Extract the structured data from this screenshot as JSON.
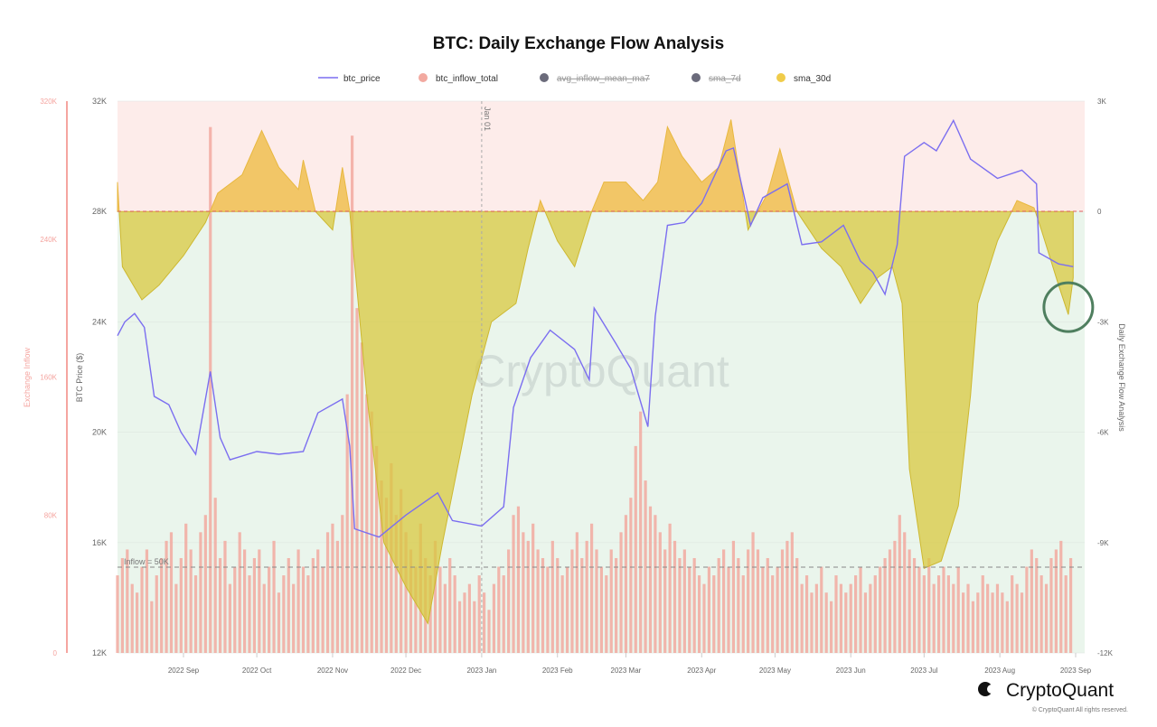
{
  "chart_data": {
    "type": "line",
    "title": "BTC: Daily Exchange Flow Analysis",
    "legend": {
      "placement": "top-center",
      "items": [
        {
          "name": "btc_price",
          "color": "#7b6ef0",
          "marker": "line",
          "hidden": false
        },
        {
          "name": "btc_inflow_total",
          "color": "#f2a9a0",
          "marker": "dot",
          "hidden": false
        },
        {
          "name": "avg_inflow_mean_ma7",
          "color": "#6b6b7b",
          "marker": "dot",
          "hidden": true
        },
        {
          "name": "sma_7d",
          "color": "#6b6b7b",
          "marker": "dot",
          "hidden": true
        },
        {
          "name": "sma_30d",
          "color": "#f0cc4a",
          "marker": "dot",
          "hidden": false
        }
      ]
    },
    "axes": {
      "inflow": {
        "label": "Exchange Inflow",
        "ticks": [
          "320K",
          "240K",
          "160K",
          "80K",
          "0"
        ],
        "range": [
          0,
          320000
        ],
        "color": "#f5a5a0"
      },
      "price": {
        "label": "BTC Price ($)",
        "ticks": [
          "32K",
          "28K",
          "24K",
          "20K",
          "16K",
          "12K"
        ],
        "range": [
          12000,
          32000
        ]
      },
      "flow": {
        "label": "Daily Exchange Flow Analysis",
        "ticks": [
          "3K",
          "0",
          "-3K",
          "-6K",
          "-9K",
          "-12K"
        ],
        "range": [
          -12000,
          3000
        ]
      },
      "x": {
        "ticks": [
          "2022 Sep",
          "2022 Oct",
          "2022 Nov",
          "2022 Dec",
          "2023 Jan",
          "2023 Feb",
          "2023 Mar",
          "2023 Apr",
          "2023 May",
          "2023 Jun",
          "2023 Jul",
          "2023 Aug",
          "2023 Sep"
        ],
        "tick_dates": [
          "2022-09-01",
          "2022-10-01",
          "2022-11-01",
          "2022-12-01",
          "2023-01-01",
          "2023-02-01",
          "2023-03-01",
          "2023-04-01",
          "2023-05-01",
          "2023-06-01",
          "2023-07-01",
          "2023-08-01",
          "2023-09-01"
        ]
      }
    },
    "grid": true,
    "annotations": {
      "jan_marker": {
        "label": "Jan 01",
        "date": "2023-01-01"
      },
      "inflow_threshold": {
        "label": "Inflow = 50K",
        "value": 50000
      },
      "zero_line": {
        "value": 0,
        "color": "#e06060"
      },
      "highlight_circle": {
        "date": "2023-08-29",
        "value": -2600,
        "color": "#4f7f5f"
      }
    },
    "zones": {
      "positive_color": "#fdecea",
      "negative_color": "#eaf5ec"
    },
    "watermark": "CryptoQuant",
    "btc_inflow_total": {
      "start": "2022-08-05",
      "step_days": 2,
      "unit": "K",
      "values": [
        45,
        55,
        60,
        40,
        35,
        50,
        60,
        30,
        45,
        55,
        65,
        70,
        40,
        55,
        75,
        60,
        45,
        70,
        80,
        305,
        90,
        55,
        65,
        40,
        50,
        70,
        60,
        45,
        55,
        60,
        40,
        50,
        65,
        35,
        45,
        55,
        40,
        60,
        50,
        45,
        55,
        60,
        50,
        70,
        75,
        65,
        80,
        150,
        300,
        200,
        180,
        150,
        140,
        120,
        100,
        90,
        110,
        80,
        95,
        70,
        60,
        50,
        75,
        55,
        45,
        65,
        50,
        40,
        55,
        45,
        30,
        35,
        40,
        30,
        45,
        35,
        25,
        40,
        50,
        45,
        60,
        80,
        85,
        70,
        65,
        75,
        60,
        55,
        50,
        65,
        55,
        45,
        50,
        60,
        70,
        55,
        65,
        75,
        60,
        50,
        45,
        60,
        55,
        70,
        80,
        90,
        120,
        140,
        100,
        85,
        80,
        70,
        60,
        75,
        65,
        55,
        60,
        50,
        55,
        45,
        40,
        50,
        45,
        55,
        60,
        50,
        65,
        55,
        45,
        60,
        70,
        60,
        50,
        55,
        45,
        50,
        60,
        65,
        70,
        55,
        40,
        45,
        35,
        40,
        50,
        35,
        30,
        45,
        40,
        35,
        40,
        45,
        50,
        35,
        40,
        45,
        50,
        55,
        60,
        65,
        80,
        70,
        60,
        55,
        50,
        45,
        55,
        40,
        45,
        50,
        45,
        40,
        50,
        35,
        40,
        30,
        35,
        45,
        40,
        35,
        40,
        35,
        30,
        45,
        40,
        35,
        50,
        60,
        55,
        45,
        40,
        55,
        60,
        65,
        45,
        55
      ]
    },
    "btc_price": [
      [
        "2022-08-05",
        23500
      ],
      [
        "2022-08-08",
        24000
      ],
      [
        "2022-08-12",
        24300
      ],
      [
        "2022-08-16",
        23800
      ],
      [
        "2022-08-20",
        21300
      ],
      [
        "2022-08-26",
        21000
      ],
      [
        "2022-08-31",
        20000
      ],
      [
        "2022-09-06",
        19200
      ],
      [
        "2022-09-12",
        22200
      ],
      [
        "2022-09-16",
        19800
      ],
      [
        "2022-09-20",
        19000
      ],
      [
        "2022-10-01",
        19300
      ],
      [
        "2022-10-10",
        19200
      ],
      [
        "2022-10-20",
        19300
      ],
      [
        "2022-10-26",
        20700
      ],
      [
        "2022-11-05",
        21200
      ],
      [
        "2022-11-08",
        19500
      ],
      [
        "2022-11-10",
        16500
      ],
      [
        "2022-11-20",
        16200
      ],
      [
        "2022-12-01",
        17000
      ],
      [
        "2022-12-14",
        17800
      ],
      [
        "2022-12-20",
        16800
      ],
      [
        "2023-01-01",
        16600
      ],
      [
        "2023-01-10",
        17300
      ],
      [
        "2023-01-14",
        20900
      ],
      [
        "2023-01-21",
        22700
      ],
      [
        "2023-01-29",
        23700
      ],
      [
        "2023-02-08",
        23000
      ],
      [
        "2023-02-14",
        21900
      ],
      [
        "2023-02-16",
        24500
      ],
      [
        "2023-02-25",
        23200
      ],
      [
        "2023-03-03",
        22300
      ],
      [
        "2023-03-10",
        20200
      ],
      [
        "2023-03-13",
        24200
      ],
      [
        "2023-03-18",
        27500
      ],
      [
        "2023-03-25",
        27600
      ],
      [
        "2023-04-01",
        28300
      ],
      [
        "2023-04-11",
        30200
      ],
      [
        "2023-04-14",
        30300
      ],
      [
        "2023-04-21",
        27500
      ],
      [
        "2023-04-26",
        28500
      ],
      [
        "2023-05-06",
        29000
      ],
      [
        "2023-05-12",
        26800
      ],
      [
        "2023-05-20",
        26900
      ],
      [
        "2023-05-29",
        27500
      ],
      [
        "2023-06-05",
        26200
      ],
      [
        "2023-06-10",
        25800
      ],
      [
        "2023-06-15",
        25000
      ],
      [
        "2023-06-20",
        26800
      ],
      [
        "2023-06-23",
        30000
      ],
      [
        "2023-07-01",
        30500
      ],
      [
        "2023-07-06",
        30200
      ],
      [
        "2023-07-13",
        31300
      ],
      [
        "2023-07-20",
        29900
      ],
      [
        "2023-07-31",
        29200
      ],
      [
        "2023-08-10",
        29500
      ],
      [
        "2023-08-16",
        29000
      ],
      [
        "2023-08-17",
        26500
      ],
      [
        "2023-08-25",
        26100
      ],
      [
        "2023-08-31",
        26000
      ]
    ],
    "sma_30d": [
      [
        "2022-08-05",
        800
      ],
      [
        "2022-08-07",
        -1500
      ],
      [
        "2022-08-15",
        -2400
      ],
      [
        "2022-08-22",
        -2000
      ],
      [
        "2022-09-01",
        -1200
      ],
      [
        "2022-09-10",
        -300
      ],
      [
        "2022-09-15",
        500
      ],
      [
        "2022-09-25",
        1000
      ],
      [
        "2022-10-03",
        2200
      ],
      [
        "2022-10-10",
        1200
      ],
      [
        "2022-10-18",
        600
      ],
      [
        "2022-10-20",
        1400
      ],
      [
        "2022-10-25",
        0
      ],
      [
        "2022-11-01",
        -500
      ],
      [
        "2022-11-05",
        1200
      ],
      [
        "2022-11-08",
        0
      ],
      [
        "2022-11-15",
        -5000
      ],
      [
        "2022-11-22",
        -9000
      ],
      [
        "2022-12-01",
        -10200
      ],
      [
        "2022-12-10",
        -11200
      ],
      [
        "2022-12-16",
        -9000
      ],
      [
        "2022-12-22",
        -7000
      ],
      [
        "2022-12-28",
        -5000
      ],
      [
        "2023-01-05",
        -3000
      ],
      [
        "2023-01-15",
        -2500
      ],
      [
        "2023-01-20",
        -1000
      ],
      [
        "2023-01-25",
        300
      ],
      [
        "2023-02-01",
        -800
      ],
      [
        "2023-02-08",
        -1500
      ],
      [
        "2023-02-15",
        0
      ],
      [
        "2023-02-20",
        800
      ],
      [
        "2023-03-01",
        800
      ],
      [
        "2023-03-08",
        300
      ],
      [
        "2023-03-14",
        800
      ],
      [
        "2023-03-18",
        2300
      ],
      [
        "2023-03-24",
        1500
      ],
      [
        "2023-04-01",
        800
      ],
      [
        "2023-04-08",
        1200
      ],
      [
        "2023-04-13",
        2500
      ],
      [
        "2023-04-20",
        -500
      ],
      [
        "2023-04-28",
        500
      ],
      [
        "2023-05-03",
        1700
      ],
      [
        "2023-05-10",
        0
      ],
      [
        "2023-05-20",
        -1000
      ],
      [
        "2023-05-28",
        -1500
      ],
      [
        "2023-06-05",
        -2500
      ],
      [
        "2023-06-12",
        -1800
      ],
      [
        "2023-06-18",
        -1500
      ],
      [
        "2023-06-22",
        -2500
      ],
      [
        "2023-06-25",
        -7000
      ],
      [
        "2023-07-01",
        -9700
      ],
      [
        "2023-07-08",
        -9500
      ],
      [
        "2023-07-15",
        -8000
      ],
      [
        "2023-07-20",
        -5000
      ],
      [
        "2023-07-23",
        -2500
      ],
      [
        "2023-07-31",
        -800
      ],
      [
        "2023-08-08",
        300
      ],
      [
        "2023-08-15",
        100
      ],
      [
        "2023-08-18",
        -500
      ],
      [
        "2023-08-25",
        -2000
      ],
      [
        "2023-08-29",
        -2800
      ],
      [
        "2023-08-31",
        -1800
      ]
    ]
  },
  "footer": {
    "logo": "CryptoQuant",
    "copyright": "© CryptoQuant All rights reserved."
  }
}
